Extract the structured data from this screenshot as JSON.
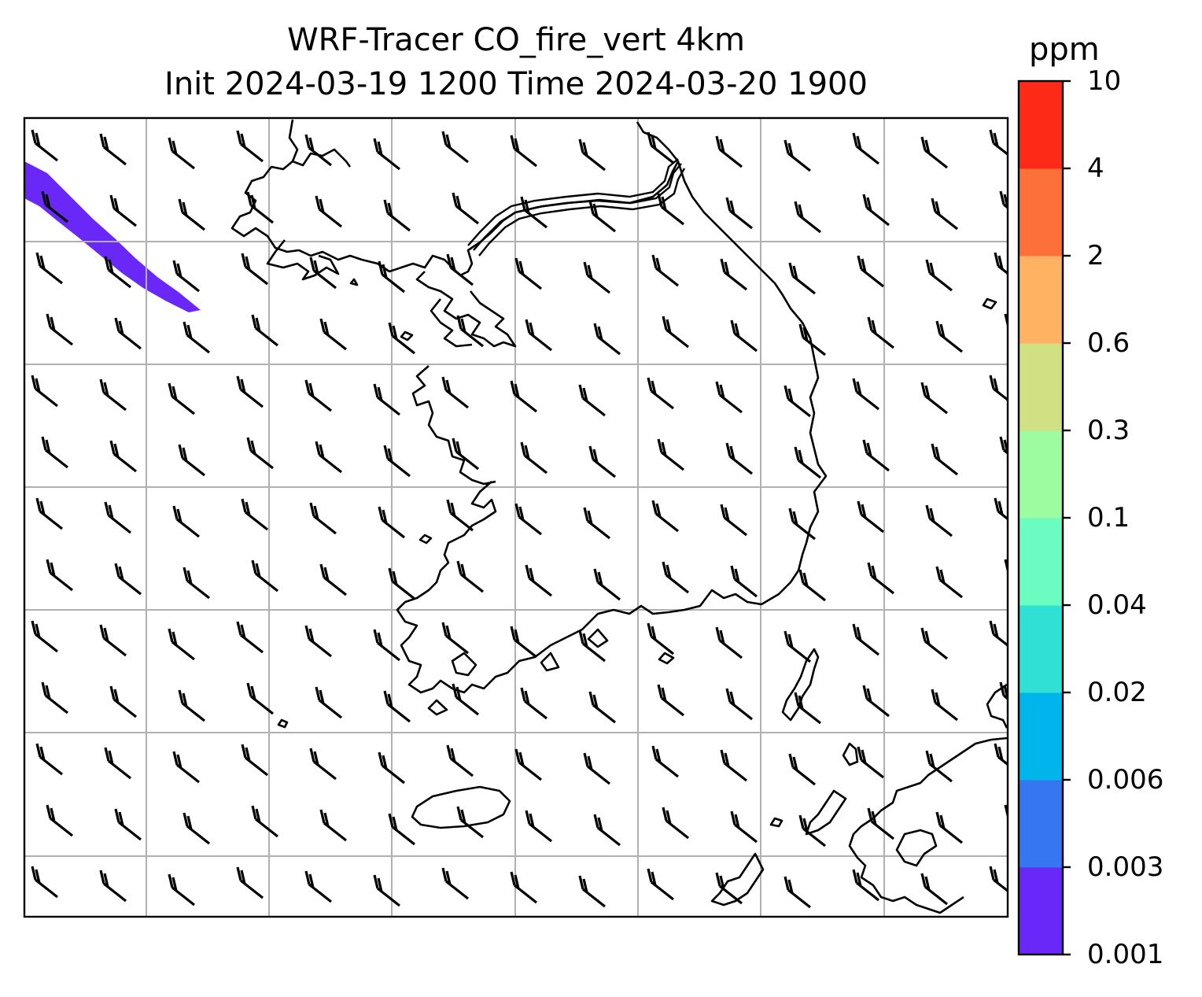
{
  "title": {
    "line1": "WRF-Tracer CO_fire_vert 4km",
    "line2": "Init 2024-03-19 1200 Time 2024-03-20 1900"
  },
  "colorbar": {
    "unit": "ppm",
    "levels": [
      "0.001",
      "0.003",
      "0.006",
      "0.02",
      "0.04",
      "0.1",
      "0.3",
      "0.6",
      "2",
      "4",
      "10"
    ],
    "colors": [
      "#6a28f8",
      "#3676f0",
      "#00b4ec",
      "#30e0d4",
      "#6afcc0",
      "#9efca0",
      "#d2e084",
      "#feb262",
      "#fe703a",
      "#fe2a18"
    ]
  },
  "map": {
    "gridlines": true,
    "gridline_color": "#b0b0b0",
    "plume_color": "#6a28f8",
    "wind_barbs": "uniform northwesterly flow across the domain"
  }
}
